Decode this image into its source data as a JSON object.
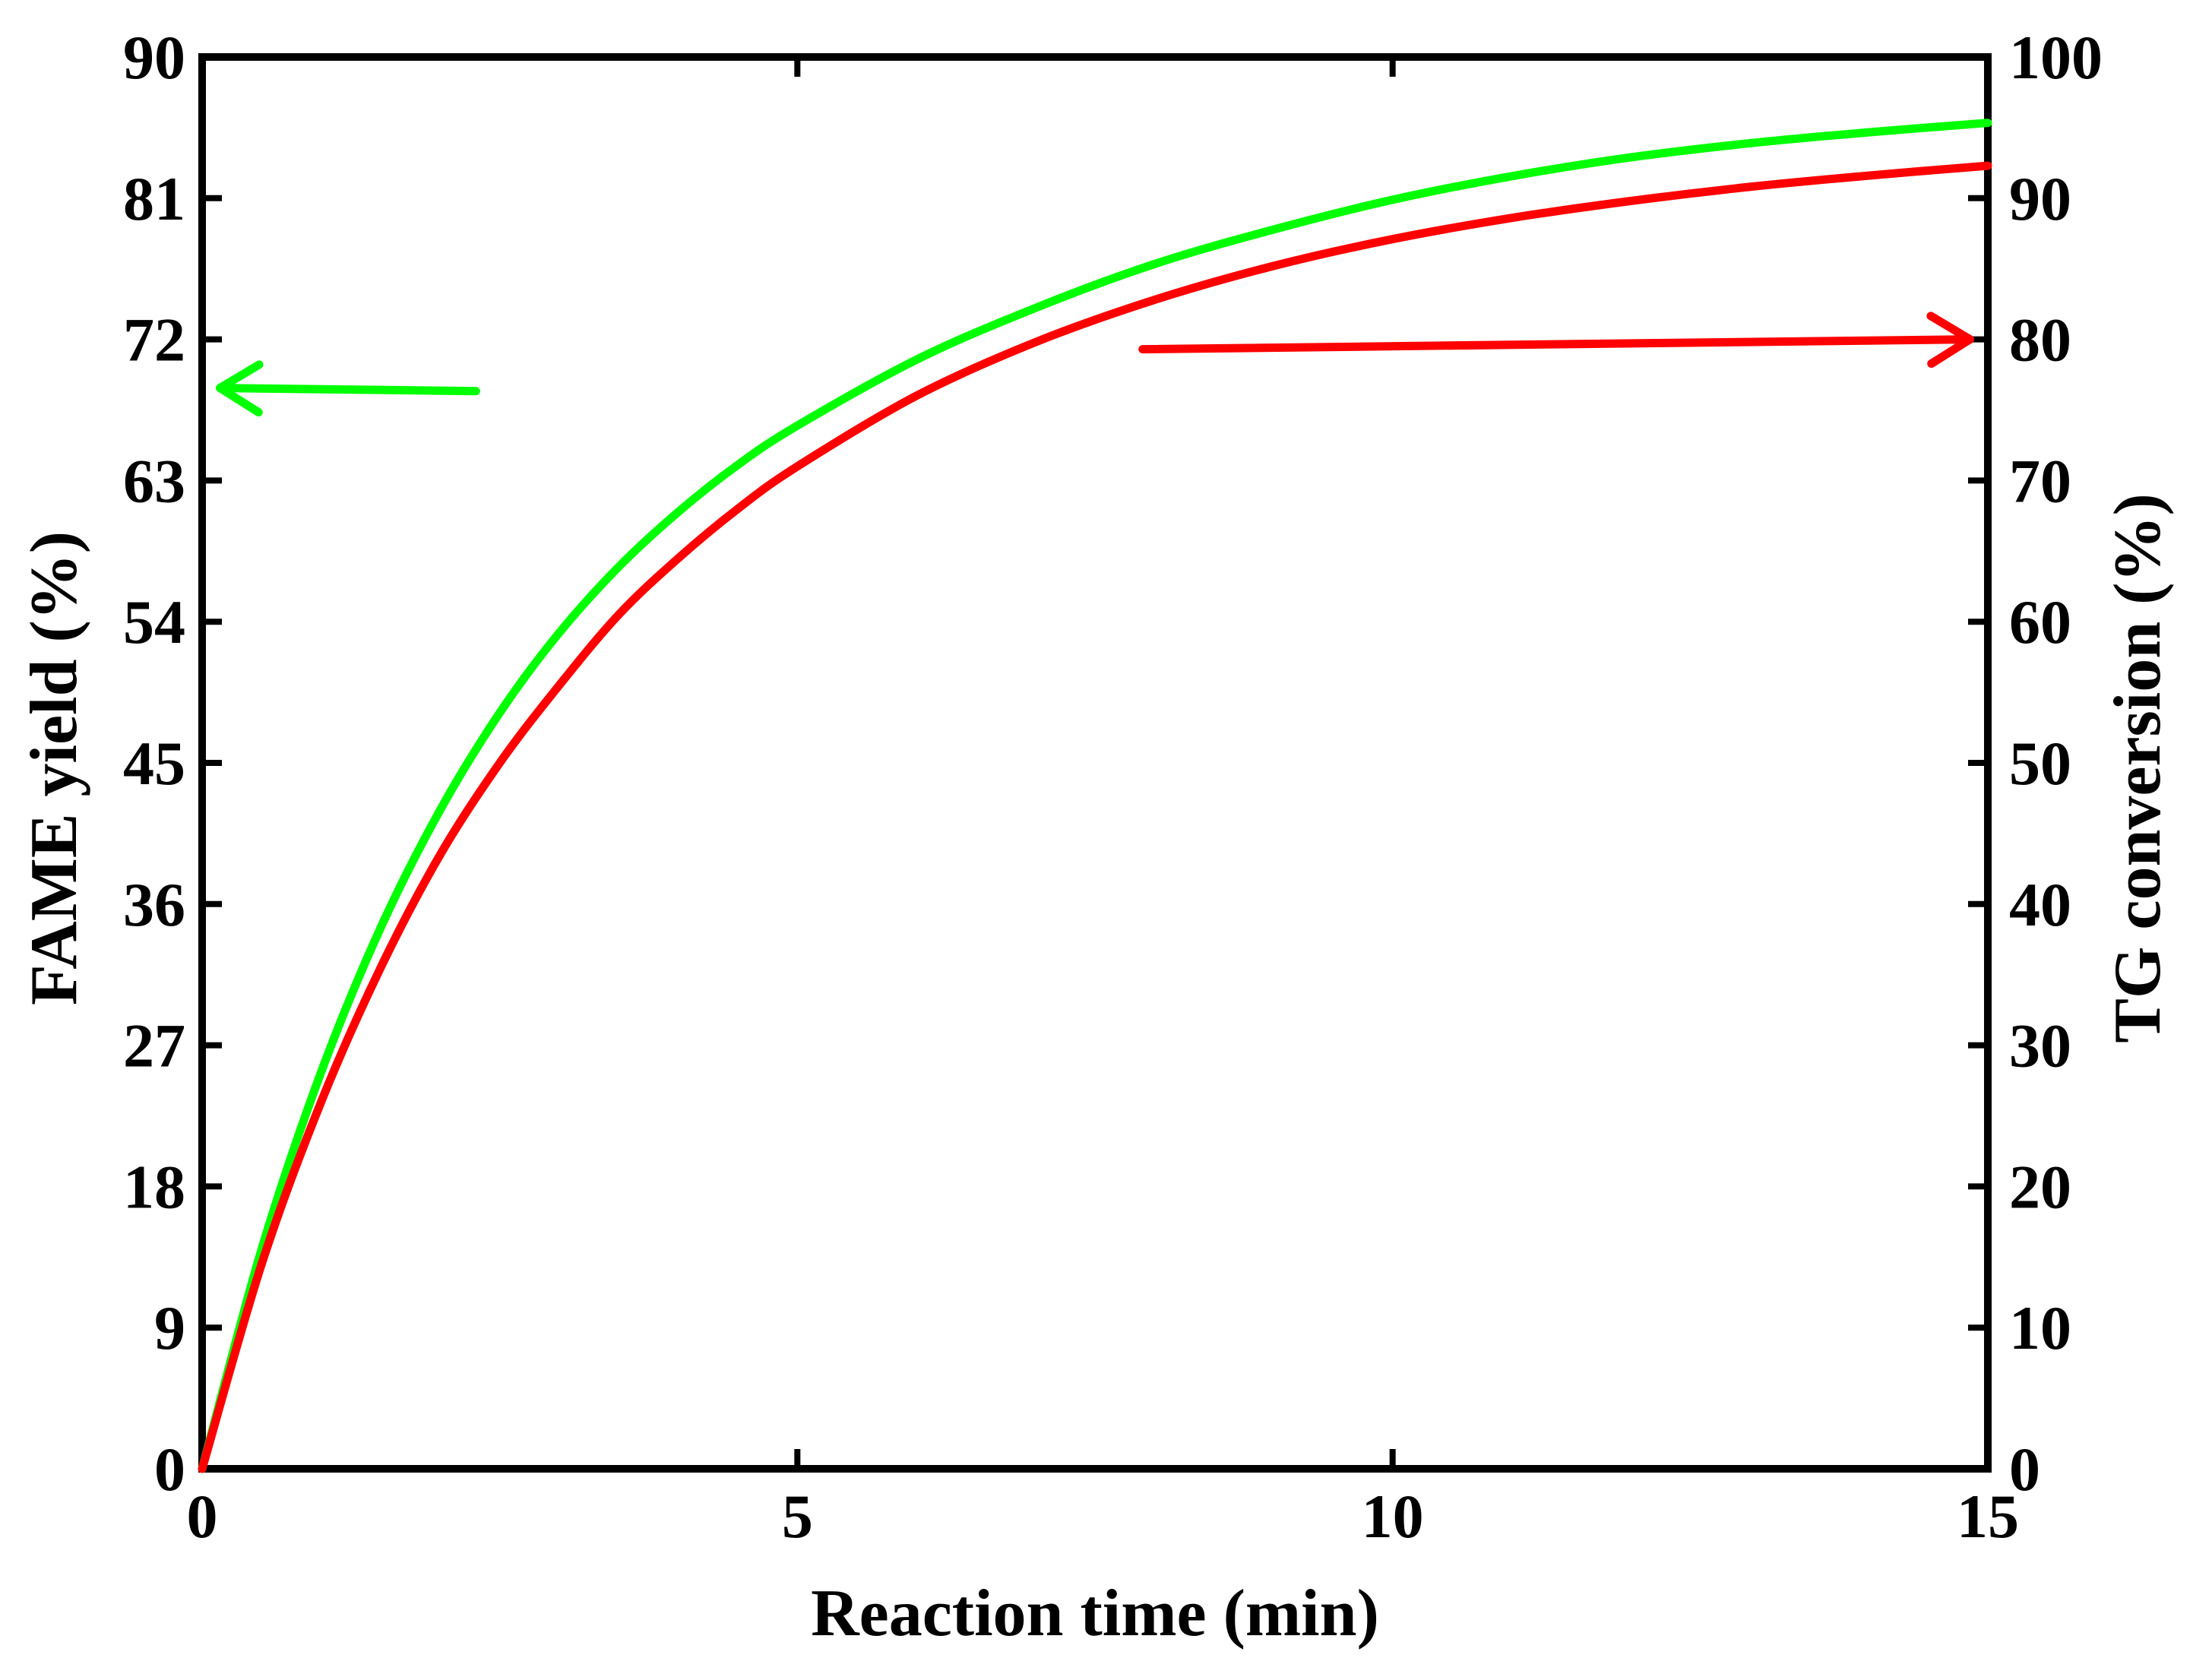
{
  "chart_data": {
    "type": "line",
    "title": "",
    "xlabel": "Reaction time (min)",
    "ylabel_left": "FAME yield (%)",
    "ylabel_right": "TG conversion (%)",
    "xlim": [
      0,
      15
    ],
    "ylim_left": [
      0,
      90
    ],
    "ylim_right": [
      0,
      100
    ],
    "x_ticks": [
      0,
      5,
      10,
      15
    ],
    "y_left_ticks": [
      0,
      9,
      18,
      27,
      36,
      45,
      54,
      63,
      72,
      81,
      90
    ],
    "y_right_ticks": [
      0,
      10,
      20,
      30,
      40,
      50,
      60,
      70,
      80,
      90,
      100
    ],
    "grid": false,
    "series": [
      {
        "name": "FAME yield",
        "axis": "left",
        "color": "#00ff00",
        "x": [
          0,
          0.5,
          1,
          1.5,
          2,
          2.5,
          3,
          3.5,
          4,
          4.5,
          5,
          6,
          7,
          8,
          9,
          10,
          11,
          12,
          13,
          14,
          15
        ],
        "y": [
          0,
          14.0,
          25.3,
          34.5,
          42.0,
          48.2,
          53.3,
          57.5,
          61.0,
          64.0,
          66.5,
          70.7,
          74.0,
          76.8,
          79.0,
          80.9,
          82.4,
          83.6,
          84.5,
          85.2,
          85.8
        ]
      },
      {
        "name": "TG conversion",
        "axis": "right",
        "color": "#ff0000",
        "x": [
          0,
          0.5,
          1,
          1.5,
          2,
          2.5,
          3,
          3.5,
          4,
          4.5,
          5,
          6,
          7,
          8,
          9,
          10,
          11,
          12,
          13,
          14,
          15
        ],
        "y": [
          0,
          14.5,
          26.0,
          35.5,
          43.5,
          50.0,
          55.5,
          60.5,
          64.5,
          68.0,
          71.0,
          76.0,
          79.8,
          82.8,
          85.2,
          87.1,
          88.6,
          89.8,
          90.8,
          91.6,
          92.3
        ]
      }
    ],
    "annotations": [
      {
        "type": "arrow",
        "color": "#00ff00",
        "points_to": "left axis",
        "from": {
          "x": 2.3,
          "y_left": 68.7
        },
        "to": {
          "x": 0.15,
          "y_left": 68.9
        }
      },
      {
        "type": "arrow",
        "color": "#ff0000",
        "points_to": "right axis",
        "from": {
          "x": 7.9,
          "y_right": 79.3
        },
        "to": {
          "x": 14.85,
          "y_right": 80.0
        }
      }
    ]
  }
}
